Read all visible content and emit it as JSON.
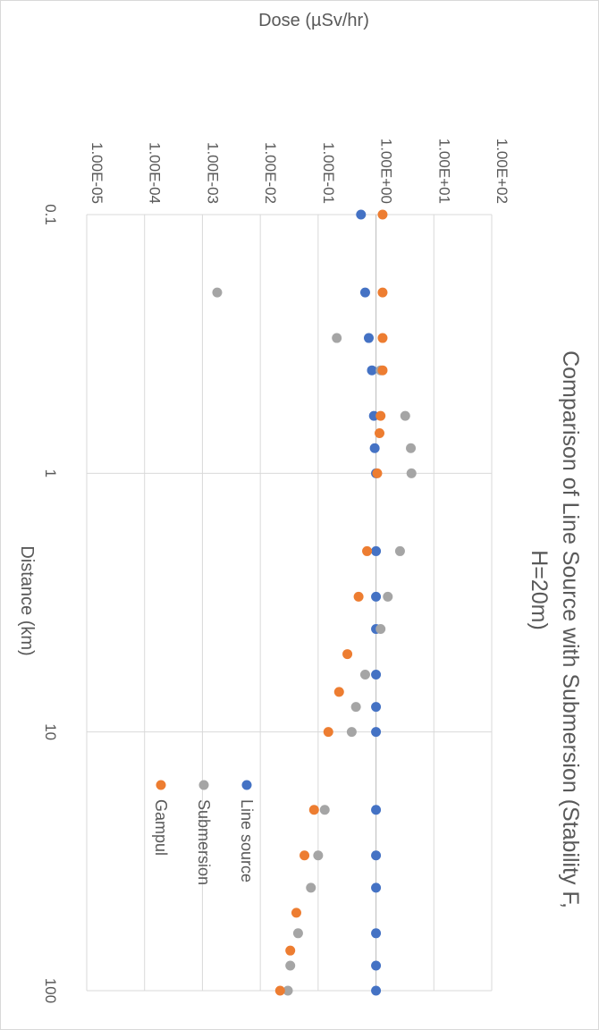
{
  "chart_data": {
    "type": "scatter",
    "title_lines": [
      "Comparison of Line Source with Submersion (Stability F,",
      "H=20m)"
    ],
    "xlabel": "Distance (km)",
    "ylabel": "Dose (µSv/hr)",
    "x_scale": "log",
    "y_scale": "log",
    "xlim": [
      0.1,
      100
    ],
    "ylim": [
      1e-05,
      100
    ],
    "x_ticks": [
      0.1,
      1,
      10,
      100
    ],
    "x_tick_labels": [
      "0.1",
      "1",
      "10",
      "100"
    ],
    "y_ticks": [
      1e-05,
      0.0001,
      0.001,
      0.01,
      0.1,
      1,
      10,
      100
    ],
    "y_tick_labels": [
      "1.00E-05",
      "1.00E-04",
      "1.00E-03",
      "1.00E-02",
      "1.00E-01",
      "1.00E+00",
      "1.00E+01",
      "1.00E+02"
    ],
    "grid": true,
    "legend_position": "right",
    "series": [
      {
        "name": "Line source",
        "color": "#4472C4",
        "points": [
          [
            0.1,
            0.55
          ],
          [
            0.2,
            0.65
          ],
          [
            0.3,
            0.75
          ],
          [
            0.4,
            0.85
          ],
          [
            0.6,
            0.92
          ],
          [
            0.8,
            0.95
          ],
          [
            1.0,
            1.0
          ],
          [
            2.0,
            1.0
          ],
          [
            3.0,
            1.0
          ],
          [
            4.0,
            1.0
          ],
          [
            6.0,
            1.0
          ],
          [
            8.0,
            1.0
          ],
          [
            10.0,
            1.0
          ],
          [
            20.0,
            1.0
          ],
          [
            30.0,
            1.0
          ],
          [
            40.0,
            1.0
          ],
          [
            60.0,
            1.0
          ],
          [
            80.0,
            1.0
          ],
          [
            100.0,
            1.0
          ]
        ]
      },
      {
        "name": "Submersion",
        "color": "#A5A5A5",
        "points": [
          [
            0.2,
            0.0018
          ],
          [
            0.3,
            0.21
          ],
          [
            0.4,
            1.2
          ],
          [
            0.6,
            3.2
          ],
          [
            0.8,
            4.0
          ],
          [
            1.0,
            4.1
          ],
          [
            2.0,
            2.6
          ],
          [
            3.0,
            1.6
          ],
          [
            4.0,
            1.2
          ],
          [
            6.0,
            0.65
          ],
          [
            8.0,
            0.45
          ],
          [
            10.0,
            0.38
          ],
          [
            20.0,
            0.13
          ],
          [
            30.0,
            0.1
          ],
          [
            40.0,
            0.075
          ],
          [
            60.0,
            0.045
          ],
          [
            80.0,
            0.033
          ],
          [
            100.0,
            0.03
          ]
        ]
      },
      {
        "name": "Gampul",
        "color": "#ED7D31",
        "points": [
          [
            0.1,
            1.3
          ],
          [
            0.2,
            1.3
          ],
          [
            0.3,
            1.3
          ],
          [
            0.4,
            1.3
          ],
          [
            0.6,
            1.2
          ],
          [
            0.7,
            1.15
          ],
          [
            1.0,
            1.05
          ],
          [
            2.0,
            0.7
          ],
          [
            3.0,
            0.5
          ],
          [
            5.0,
            0.32
          ],
          [
            7.0,
            0.23
          ],
          [
            10.0,
            0.15
          ],
          [
            20.0,
            0.085
          ],
          [
            30.0,
            0.058
          ],
          [
            50.0,
            0.042
          ],
          [
            70.0,
            0.033
          ],
          [
            100.0,
            0.022
          ]
        ]
      }
    ]
  }
}
